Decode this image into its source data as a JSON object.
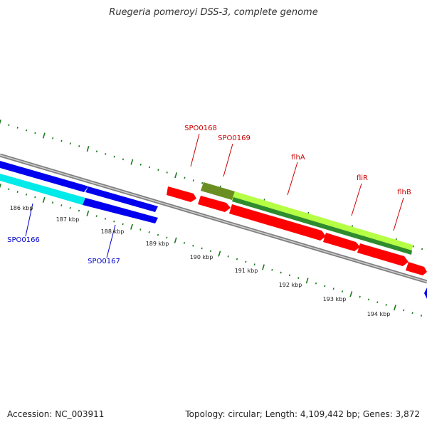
{
  "title": "Ruegeria pomeroyi DSS-3, complete genome",
  "accession": "Accession: NC_003911",
  "summary": "Topology: circular; Length: 4,109,442 bp; Genes: 3,872",
  "colors": {
    "backbone": "#808080",
    "tick": "#1a7a1a",
    "cds": "#ff0000",
    "cds_dark": "#cc0000",
    "blue": "#0000ee",
    "cyan": "#00f0f0",
    "olive": "#6b8e23",
    "lime": "#b0ff40",
    "green_dark": "#2e8b2e",
    "label_red": "#cc0000",
    "label_blue": "#0000cc"
  },
  "kbp_labels": [
    "186 kbp",
    "187 kbp",
    "188 kbp",
    "189 kbp",
    "190 kbp",
    "191 kbp",
    "192 kbp",
    "193 kbp",
    "194 kbp"
  ],
  "gene_labels": [
    {
      "text": "SPO0168",
      "color": "red"
    },
    {
      "text": "SPO0169",
      "color": "red"
    },
    {
      "text": "flhA",
      "color": "red"
    },
    {
      "text": "fliR",
      "color": "red"
    },
    {
      "text": "flhB",
      "color": "red"
    },
    {
      "text": "SPO0166",
      "color": "blue"
    },
    {
      "text": "SPO0167",
      "color": "blue"
    }
  ]
}
